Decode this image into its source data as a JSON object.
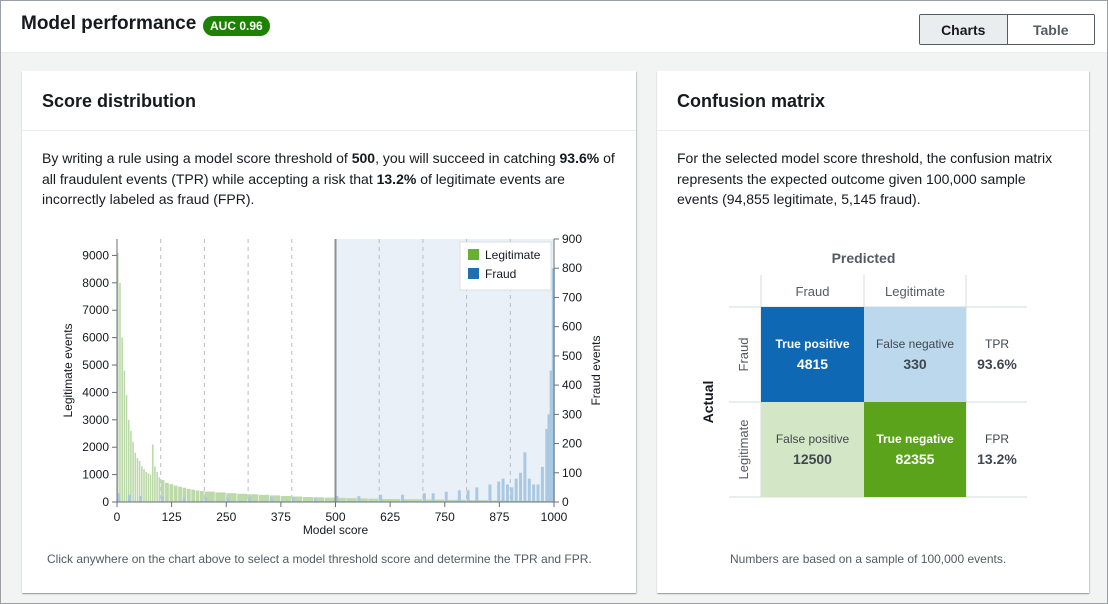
{
  "header": {
    "title": "Model performance",
    "auc_badge": "AUC 0.96",
    "view_toggle": {
      "charts_label": "Charts",
      "table_label": "Table",
      "selected": "Charts"
    }
  },
  "score_distribution": {
    "title": "Score distribution",
    "desc": {
      "p1": "By writing a rule using a model score threshold of ",
      "threshold": "500",
      "p2": ", you will succeed in catching ",
      "tpr": "93.6%",
      "p3": " of all fraudulent events (TPR) while accepting a risk that ",
      "fpr": "13.2%",
      "p4": " of legitimate events are incorrectly labeled as fraud (FPR)."
    },
    "footnote": "Click anywhere on the chart above to select a model threshold score and determine the TPR and FPR."
  },
  "chart_data": {
    "type": "bar",
    "xlabel": "Model score",
    "ylabel_left": "Legitimate events",
    "ylabel_right": "Fraud events",
    "x_ticks": [
      0,
      125,
      250,
      375,
      500,
      625,
      750,
      875,
      1000
    ],
    "y_left_ticks": [
      0,
      1000,
      2000,
      3000,
      4000,
      5000,
      6000,
      7000,
      8000,
      9000
    ],
    "y_right_ticks": [
      0,
      100,
      200,
      300,
      400,
      500,
      600,
      700,
      800,
      900
    ],
    "xlim": [
      0,
      1000
    ],
    "ylim_left": [
      0,
      9600
    ],
    "ylim_right": [
      0,
      900
    ],
    "threshold": 500,
    "legend": {
      "position": "top-right",
      "items": [
        "Legitimate",
        "Fraud"
      ]
    },
    "colors": {
      "legitimate": "#bcd9a9",
      "fraud": "#a9c9e3",
      "shade": "#eaf0f8",
      "legend_legit": "#6aaf35",
      "legend_fraud": "#1f6fb3"
    },
    "series": [
      {
        "name": "Legitimate",
        "x": [
          0,
          5,
          10,
          15,
          20,
          25,
          30,
          35,
          40,
          45,
          50,
          55,
          60,
          65,
          70,
          75,
          80,
          85,
          90,
          95,
          100,
          110,
          120,
          130,
          140,
          150,
          160,
          170,
          180,
          190,
          200,
          225,
          250,
          275,
          300,
          325,
          350,
          375,
          400,
          425,
          450,
          475,
          500,
          525,
          550,
          575,
          600,
          650,
          700,
          750,
          800,
          850,
          900,
          950
        ],
        "values": [
          9100,
          8000,
          6000,
          4800,
          3900,
          3000,
          2600,
          2200,
          1800,
          1600,
          1500,
          1300,
          1200,
          1100,
          1050,
          1000,
          2100,
          1300,
          1100,
          900,
          800,
          700,
          650,
          600,
          560,
          520,
          480,
          450,
          420,
          400,
          380,
          350,
          320,
          300,
          280,
          260,
          240,
          220,
          200,
          180,
          170,
          160,
          150,
          140,
          130,
          120,
          110,
          100,
          90,
          80,
          70,
          60,
          50,
          40
        ]
      },
      {
        "name": "Fraud",
        "x": [
          0,
          25,
          50,
          100,
          150,
          200,
          250,
          300,
          350,
          400,
          450,
          500,
          550,
          600,
          650,
          700,
          720,
          750,
          780,
          800,
          820,
          850,
          870,
          880,
          890,
          900,
          910,
          920,
          930,
          940,
          950,
          960,
          970,
          980,
          985,
          990,
          995
        ],
        "values": [
          30,
          25,
          20,
          20,
          15,
          15,
          15,
          15,
          15,
          15,
          15,
          20,
          20,
          25,
          25,
          30,
          30,
          35,
          40,
          40,
          50,
          60,
          70,
          80,
          60,
          50,
          80,
          100,
          170,
          80,
          60,
          60,
          120,
          250,
          300,
          450,
          800
        ]
      }
    ]
  },
  "confusion_matrix": {
    "title": "Confusion matrix",
    "desc": "For the selected model score threshold, the confusion matrix represents the expected outcome given 100,000 sample events (94,855 legitimate, 5,145 fraud).",
    "predicted_label": "Predicted",
    "actual_label": "Actual",
    "col_labels": [
      "Fraud",
      "Legitimate"
    ],
    "row_labels": [
      "Fraud",
      "Legitimate"
    ],
    "cells": {
      "tp": {
        "label": "True positive",
        "value": "4815",
        "color": "#0f68b3"
      },
      "fn": {
        "label": "False negative",
        "value": "330",
        "color": "#bcd8ec"
      },
      "fp": {
        "label": "False positive",
        "value": "12500",
        "color": "#d3e6c5"
      },
      "tn": {
        "label": "True negative",
        "value": "82355",
        "color": "#5ba31b"
      }
    },
    "rates": [
      {
        "label": "TPR",
        "value": "93.6%"
      },
      {
        "label": "FPR",
        "value": "13.2%"
      }
    ],
    "footnote": "Numbers are based on a sample of 100,000 events."
  }
}
